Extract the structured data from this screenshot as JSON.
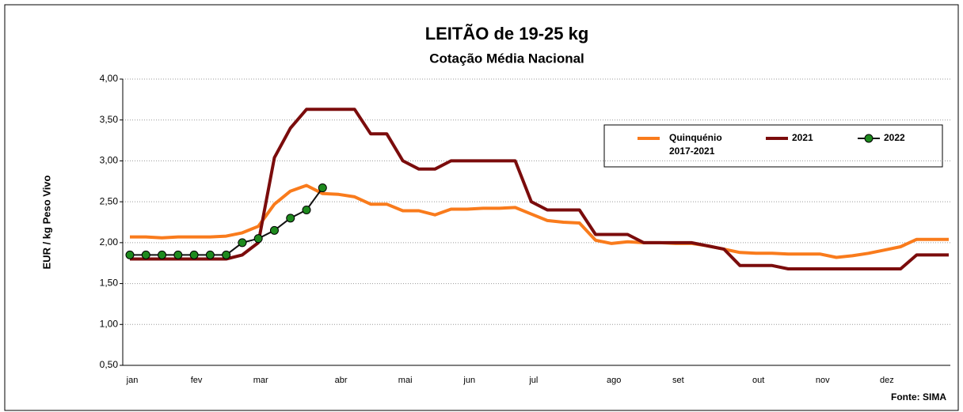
{
  "chart_data": {
    "type": "line",
    "title": "LEITÃO de 19-25 kg",
    "subtitle": "Cotação Média Nacional",
    "y_label": "EUR / kg Peso Vivo",
    "source": "Fonte: SIMA",
    "categories": [
      "jan",
      null,
      null,
      null,
      "fev",
      null,
      null,
      null,
      "mar",
      null,
      null,
      null,
      null,
      "abr",
      null,
      null,
      null,
      "mai",
      null,
      null,
      null,
      "jun",
      null,
      null,
      null,
      "jul",
      null,
      null,
      null,
      null,
      "ago",
      null,
      null,
      null,
      "set",
      null,
      null,
      null,
      null,
      "out",
      null,
      null,
      null,
      "nov",
      null,
      null,
      null,
      "dez",
      null,
      null,
      null,
      null
    ],
    "ylim": [
      0.5,
      4.0
    ],
    "yticks": [
      {
        "value": 0.5,
        "label": "0,50"
      },
      {
        "value": 1.0,
        "label": "1,00"
      },
      {
        "value": 1.5,
        "label": "1,50"
      },
      {
        "value": 2.0,
        "label": "2,00"
      },
      {
        "value": 2.5,
        "label": "2,50"
      },
      {
        "value": 3.0,
        "label": "3,00"
      },
      {
        "value": 3.5,
        "label": "3,50"
      },
      {
        "value": 4.0,
        "label": "4,00"
      }
    ],
    "grid": true,
    "series": [
      {
        "name": "Quinquénio 2017-2021",
        "color": "#f97b1c",
        "markers": false,
        "values": [
          2.07,
          2.07,
          2.06,
          2.07,
          2.07,
          2.07,
          2.08,
          2.12,
          2.2,
          2.47,
          2.63,
          2.7,
          2.6,
          2.59,
          2.56,
          2.47,
          2.47,
          2.39,
          2.39,
          2.34,
          2.41,
          2.41,
          2.42,
          2.42,
          2.43,
          2.35,
          2.27,
          2.25,
          2.24,
          2.03,
          1.99,
          2.01,
          2.0,
          2.0,
          1.99,
          1.99,
          1.96,
          1.92,
          1.88,
          1.87,
          1.87,
          1.86,
          1.86,
          1.86,
          1.82,
          1.84,
          1.87,
          1.91,
          1.95,
          2.04,
          2.04,
          2.04
        ]
      },
      {
        "name": "2021",
        "color": "#7b0c0c",
        "markers": false,
        "values": [
          1.8,
          1.8,
          1.8,
          1.8,
          1.8,
          1.8,
          1.8,
          1.85,
          2.0,
          3.04,
          3.4,
          3.63,
          3.63,
          3.63,
          3.63,
          3.33,
          3.33,
          3.0,
          2.9,
          2.9,
          3.0,
          3.0,
          3.0,
          3.0,
          3.0,
          2.5,
          2.4,
          2.4,
          2.4,
          2.1,
          2.1,
          2.1,
          2.0,
          2.0,
          2.0,
          2.0,
          1.96,
          1.92,
          1.72,
          1.72,
          1.72,
          1.68,
          1.68,
          1.68,
          1.68,
          1.68,
          1.68,
          1.68,
          1.68,
          1.85,
          1.85,
          1.85
        ]
      },
      {
        "name": "2022",
        "color": "#111111",
        "marker_color": "#1e8a1e",
        "markers": true,
        "values": [
          1.85,
          1.85,
          1.85,
          1.85,
          1.85,
          1.85,
          1.85,
          2.0,
          2.05,
          2.15,
          2.3,
          2.4,
          2.67,
          null,
          null,
          null,
          null,
          null,
          null,
          null,
          null,
          null,
          null,
          null,
          null,
          null,
          null,
          null,
          null,
          null,
          null,
          null,
          null,
          null,
          null,
          null,
          null,
          null,
          null,
          null,
          null,
          null,
          null,
          null,
          null,
          null,
          null,
          null,
          null,
          null,
          null,
          null
        ]
      }
    ]
  }
}
